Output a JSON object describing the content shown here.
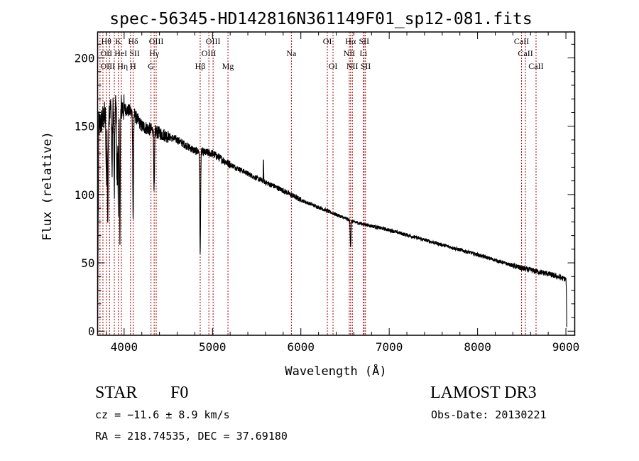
{
  "chart_data": {
    "type": "line",
    "title": "spec-56345-HD142816N361149F01_sp12-081.fits",
    "xlabel": "Wavelength (Å)",
    "ylabel": "Flux (relative)",
    "xlim": [
      3700,
      9100
    ],
    "ylim": [
      -3,
      219
    ],
    "xticks": [
      4000,
      5000,
      6000,
      7000,
      8000,
      9000
    ],
    "yticks": [
      0,
      50,
      100,
      150,
      200
    ],
    "grid": false,
    "continuum": [
      [
        3700,
        0
      ],
      [
        3712,
        150
      ],
      [
        3800,
        160
      ],
      [
        3900,
        165
      ],
      [
        4000,
        163
      ],
      [
        4100,
        160
      ],
      [
        4200,
        150
      ],
      [
        4400,
        145
      ],
      [
        4600,
        140
      ],
      [
        4800,
        132
      ],
      [
        5000,
        130
      ],
      [
        5200,
        122
      ],
      [
        5500,
        112
      ],
      [
        5800,
        103
      ],
      [
        6000,
        96
      ],
      [
        6300,
        88
      ],
      [
        6600,
        80
      ],
      [
        7000,
        74
      ],
      [
        7500,
        65
      ],
      [
        8000,
        56
      ],
      [
        8500,
        46
      ],
      [
        8800,
        42
      ],
      [
        9000,
        38
      ],
      [
        9005,
        30
      ],
      [
        9010,
        3
      ]
    ],
    "absorption": [
      [
        3798,
        110
      ],
      [
        3815,
        80
      ],
      [
        3863,
        116
      ],
      [
        3889,
        100
      ],
      [
        3920,
        106
      ],
      [
        3934,
        95
      ],
      [
        3952,
        74
      ],
      [
        4102,
        80
      ],
      [
        4340,
        102
      ],
      [
        4861,
        57
      ],
      [
        6563,
        62
      ]
    ],
    "emission": [
      [
        5577,
        125
      ]
    ],
    "lines": [
      {
        "label": "Hθ",
        "wl": 3798,
        "row": 1
      },
      {
        "label": "K",
        "wl": 3934,
        "row": 1
      },
      {
        "label": "Hδ",
        "wl": 4102,
        "row": 1
      },
      {
        "label": "OIII",
        "wl": 4363,
        "row": 1
      },
      {
        "label": "OIII",
        "wl": 5007,
        "row": 1
      },
      {
        "label": "OI",
        "wl": 6300,
        "row": 1
      },
      {
        "label": "Hα",
        "wl": 6563,
        "row": 1
      },
      {
        "label": "SII",
        "wl": 6716,
        "row": 1
      },
      {
        "label": "CaII",
        "wl": 8498,
        "row": 1
      },
      {
        "label": "OII",
        "wl": 3727,
        "row": 2
      },
      {
        "label": "HeI",
        "wl": 3889,
        "row": 2
      },
      {
        "label": "SII",
        "wl": 4072,
        "row": 2
      },
      {
        "label": "Hγ",
        "wl": 4340,
        "row": 2
      },
      {
        "label": "OIII",
        "wl": 4959,
        "row": 2
      },
      {
        "label": "Na",
        "wl": 5893,
        "row": 2
      },
      {
        "label": "NII",
        "wl": 6548,
        "row": 2
      },
      {
        "label": "Li",
        "wl": 6708,
        "row": 2
      },
      {
        "label": "CaII",
        "wl": 8542,
        "row": 2
      },
      {
        "label": "OIII",
        "wl": 3760,
        "row": 3
      },
      {
        "label": "Hη",
        "wl": 3835,
        "row": 3
      },
      {
        "label": "H",
        "wl": 3969,
        "row": 3
      },
      {
        "label": "G",
        "wl": 4304,
        "row": 3
      },
      {
        "label": "Hβ",
        "wl": 4861,
        "row": 3
      },
      {
        "label": "Mg",
        "wl": 5175,
        "row": 3
      },
      {
        "label": "OI",
        "wl": 6364,
        "row": 3
      },
      {
        "label": "NII",
        "wl": 6583,
        "row": 3
      },
      {
        "label": "SII",
        "wl": 6731,
        "row": 3
      },
      {
        "label": "CaII",
        "wl": 8662,
        "row": 3
      }
    ],
    "line_color": "#b00000"
  },
  "info": {
    "object_type": "STAR",
    "subclass": "F0",
    "survey": "LAMOST DR3",
    "cz": "cz = −11.6 ± 8.9 km/s",
    "obs_date": "Obs-Date: 20130221",
    "coords": "RA = 218.74535, DEC =  37.69180"
  }
}
